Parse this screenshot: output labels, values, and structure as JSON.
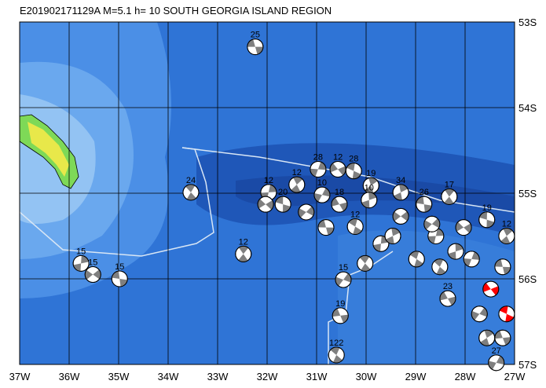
{
  "title": "E201902171129A M=5.1 h= 10 SOUTH GEORGIA ISLAND REGION",
  "map": {
    "lonlim": [
      -37,
      -27
    ],
    "latlim": [
      -57,
      -53
    ],
    "lon_ticks": [
      {
        "value": -37,
        "label": "37W"
      },
      {
        "value": -36,
        "label": "36W"
      },
      {
        "value": -35,
        "label": "35W"
      },
      {
        "value": -34,
        "label": "34W"
      },
      {
        "value": -33,
        "label": "33W"
      },
      {
        "value": -32,
        "label": "32W"
      },
      {
        "value": -31,
        "label": "31W"
      },
      {
        "value": -30,
        "label": "30W"
      },
      {
        "value": -29,
        "label": "29W"
      },
      {
        "value": -28,
        "label": "28W"
      },
      {
        "value": -27,
        "label": "27W"
      }
    ],
    "lat_ticks": [
      {
        "value": -53,
        "label": "53S"
      },
      {
        "value": -54,
        "label": "54S"
      },
      {
        "value": -55,
        "label": "55S"
      },
      {
        "value": -56,
        "label": "56S"
      },
      {
        "value": -57,
        "label": "57S"
      }
    ],
    "default_color": "#7f7f7f",
    "events": [
      {
        "lon": -32.24,
        "lat": -53.29,
        "depth": "25"
      },
      {
        "lon": -33.54,
        "lat": -54.99,
        "depth": "24"
      },
      {
        "lon": -35.76,
        "lat": -55.82,
        "depth": "15"
      },
      {
        "lon": -35.52,
        "lat": -55.95,
        "depth": "15"
      },
      {
        "lon": -34.98,
        "lat": -56.0,
        "depth": "15"
      },
      {
        "lon": -32.48,
        "lat": -55.71,
        "depth": "12"
      },
      {
        "lon": -31.97,
        "lat": -54.99,
        "depth": "12"
      },
      {
        "lon": -32.03,
        "lat": -55.13
      },
      {
        "lon": -31.68,
        "lat": -55.13,
        "depth": "20"
      },
      {
        "lon": -31.4,
        "lat": -54.9,
        "depth": "12"
      },
      {
        "lon": -30.97,
        "lat": -54.72,
        "depth": "28"
      },
      {
        "lon": -30.57,
        "lat": -54.72,
        "depth": "12"
      },
      {
        "lon": -30.25,
        "lat": -54.74,
        "depth": "28"
      },
      {
        "lon": -29.9,
        "lat": -54.91,
        "depth": "19"
      },
      {
        "lon": -30.89,
        "lat": -55.02,
        "depth": "10"
      },
      {
        "lon": -30.54,
        "lat": -55.13,
        "depth": "18"
      },
      {
        "lon": -30.22,
        "lat": -55.39,
        "depth": "12"
      },
      {
        "lon": -29.3,
        "lat": -54.99,
        "depth": "34"
      },
      {
        "lon": -30.46,
        "lat": -56.01,
        "depth": "15"
      },
      {
        "lon": -30.52,
        "lat": -56.43,
        "depth": "19"
      },
      {
        "lon": -30.6,
        "lat": -56.89,
        "depth": "122"
      },
      {
        "lon": -29.94,
        "lat": -55.08,
        "depth": "10"
      },
      {
        "lon": -31.21,
        "lat": -55.22
      },
      {
        "lon": -30.81,
        "lat": -55.4
      },
      {
        "lon": -30.02,
        "lat": -55.82
      },
      {
        "lon": -29.7,
        "lat": -55.59
      },
      {
        "lon": -29.3,
        "lat": -55.27
      },
      {
        "lon": -28.83,
        "lat": -55.13,
        "depth": "26"
      },
      {
        "lon": -28.32,
        "lat": -55.04,
        "depth": "17"
      },
      {
        "lon": -28.59,
        "lat": -55.5
      },
      {
        "lon": -28.03,
        "lat": -55.4
      },
      {
        "lon": -27.56,
        "lat": -55.31,
        "depth": "19"
      },
      {
        "lon": -27.16,
        "lat": -55.5,
        "depth": "12"
      },
      {
        "lon": -27.87,
        "lat": -55.77
      },
      {
        "lon": -27.48,
        "lat": -56.12,
        "color": "#ff0000"
      },
      {
        "lon": -27.16,
        "lat": -56.41,
        "color": "#ff0000"
      },
      {
        "lon": -27.56,
        "lat": -56.69
      },
      {
        "lon": -27.37,
        "lat": -56.98,
        "depth": "27"
      },
      {
        "lon": -28.35,
        "lat": -56.23,
        "depth": "23"
      },
      {
        "lon": -28.98,
        "lat": -55.77
      },
      {
        "lon": -29.46,
        "lat": -55.5
      },
      {
        "lon": -27.71,
        "lat": -56.41
      },
      {
        "lon": -27.24,
        "lat": -56.69
      },
      {
        "lon": -28.51,
        "lat": -55.86
      },
      {
        "lon": -28.19,
        "lat": -55.68
      },
      {
        "lon": -28.67,
        "lat": -55.36
      },
      {
        "lon": -27.24,
        "lat": -55.86
      }
    ]
  }
}
